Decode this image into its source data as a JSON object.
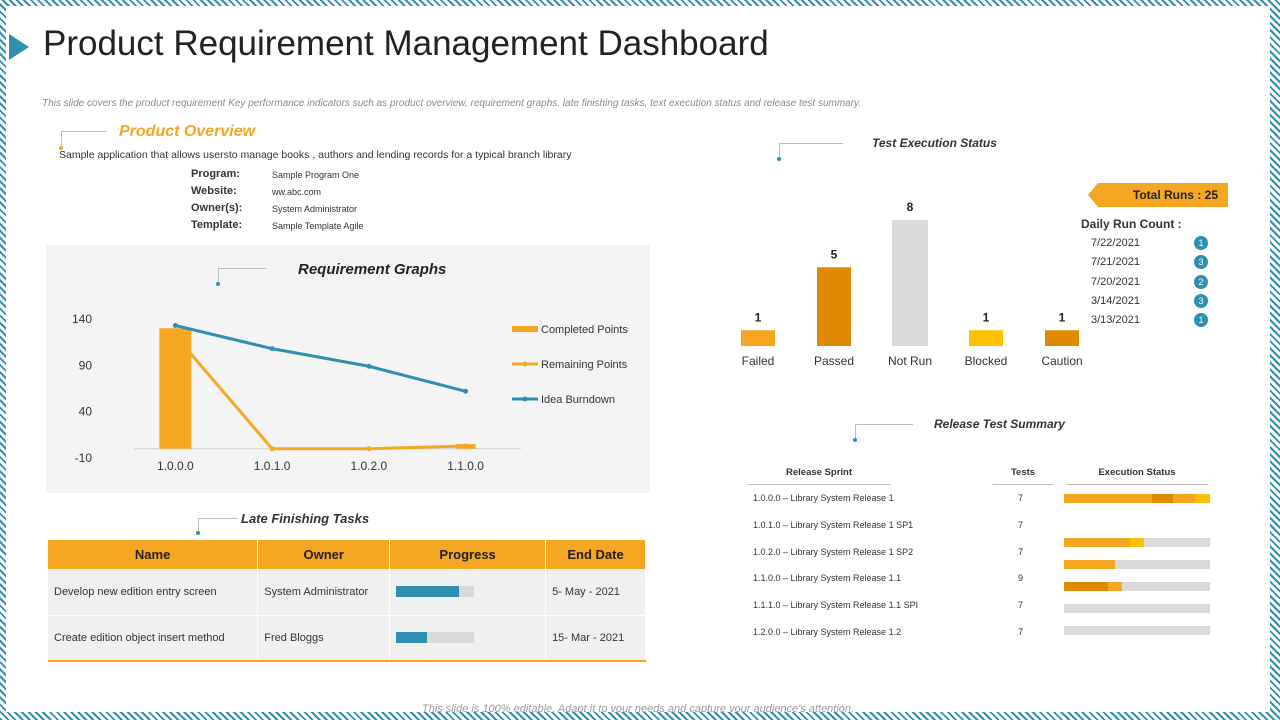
{
  "title": "Product Requirement Management Dashboard",
  "subtitle": "This slide covers the product requirement Key performance indicators such as product overview, requirement graphs, late finishing tasks, text execution status and release test summary.",
  "footer": "This slide is 100% editable. Adapt it to your needs and capture your audience's attention.",
  "colors": {
    "accent": "#f5a623",
    "accent_dark": "#e08a00",
    "blue": "#2e8fb0",
    "gray": "#d9d9d9",
    "yellow": "#ffc000"
  },
  "product_overview": {
    "heading": "Product Overview",
    "description": "Sample application that allows usersto manage books , authors and lending records for a typical branch library",
    "fields": [
      {
        "label": "Program:",
        "value": "Sample Program One"
      },
      {
        "label": "Website:",
        "value": "ww.abc.com"
      },
      {
        "label": "Owner(s):",
        "value": "System Administrator"
      },
      {
        "label": "Template:",
        "value": "Sample Template Agile"
      }
    ]
  },
  "requirement_graphs": {
    "heading": "Requirement Graphs"
  },
  "chart_data": {
    "type": "line",
    "categories": [
      "1.0.0.0",
      "1.0.1.0",
      "1.0.2.0",
      "1.1.0.0"
    ],
    "yticks": [
      "140",
      "90",
      "40",
      "-10"
    ],
    "ylim": [
      -10,
      140
    ],
    "series": [
      {
        "name": "Completed Points",
        "kind": "bar",
        "values": [
          130,
          0,
          0,
          5
        ],
        "color": "#f5a623"
      },
      {
        "name": "Remaining Points",
        "kind": "line",
        "values": [
          122,
          0,
          0,
          3
        ],
        "color": "#f5a623"
      },
      {
        "name": "Idea Burndown",
        "kind": "line",
        "values": [
          133,
          108,
          89,
          62
        ],
        "color": "#2e8fb0"
      }
    ],
    "legend": "right"
  },
  "late_tasks": {
    "heading": "Late Finishing Tasks",
    "columns": [
      "Name",
      "Owner",
      "Progress",
      "End Date"
    ],
    "rows": [
      {
        "name": "Develop new edition entry screen",
        "owner": "System Administrator",
        "progress": 0.8,
        "end_date": "5- May - 2021"
      },
      {
        "name": "Create edition object insert method",
        "owner": "Fred Bloggs",
        "progress": 0.4,
        "end_date": "15- Mar - 2021"
      }
    ]
  },
  "test_execution": {
    "heading": "Test Execution Status",
    "bars": [
      {
        "label": "Failed",
        "value": 1,
        "color": "#f5a623"
      },
      {
        "label": "Passed",
        "value": 5,
        "color": "#e08a00"
      },
      {
        "label": "Not Run",
        "value": 8,
        "color": "#d9d9d9"
      },
      {
        "label": "Blocked",
        "value": 1,
        "color": "#ffc000"
      },
      {
        "label": "Caution",
        "value": 1,
        "color": "#e08a00"
      }
    ],
    "total_runs": "Total Runs : 25",
    "daily_title": "Daily Run Count :",
    "daily": [
      {
        "date": "7/22/2021",
        "count": "1"
      },
      {
        "date": "7/21/2021",
        "count": "3"
      },
      {
        "date": "7/20/2021",
        "count": "2"
      },
      {
        "date": "3/14/2021",
        "count": "3"
      },
      {
        "date": "3/13/2021",
        "count": "1"
      }
    ]
  },
  "release_summary": {
    "heading": "Release Test Summary",
    "columns": [
      "Release Sprint",
      "Tests",
      "Execution Status"
    ],
    "rows": [
      {
        "sprint": "1.0.0.0 – Library System Release 1",
        "tests": "7"
      },
      {
        "sprint": "1.0.1.0 – Library System Release 1 SP1",
        "tests": "7"
      },
      {
        "sprint": "1.0.2.0 – Library System Release 1 SP2",
        "tests": "7"
      },
      {
        "sprint": "1.1.0.0 – Library System Release 1.1",
        "tests": "9"
      },
      {
        "sprint": "1.1.1.0 – Library System Release 1.1 SPI",
        "tests": "7"
      },
      {
        "sprint": "1.2.0.0 – Library System Release 1.2",
        "tests": "7"
      }
    ],
    "status_bars": [
      [
        {
          "frac": 0.6,
          "color": "#f5a623"
        },
        {
          "frac": 0.15,
          "color": "#e08a00"
        },
        {
          "frac": 0.15,
          "color": "#f5a623"
        },
        {
          "frac": 0.1,
          "color": "#ffc000"
        }
      ],
      [
        {
          "frac": 0.45,
          "color": "#f5a623"
        },
        {
          "frac": 0.1,
          "color": "#ffc000"
        }
      ],
      [
        {
          "frac": 0.35,
          "color": "#f5a623"
        }
      ],
      [
        {
          "frac": 0.3,
          "color": "#e08a00"
        },
        {
          "frac": 0.1,
          "color": "#f5a623"
        }
      ],
      [],
      []
    ]
  }
}
